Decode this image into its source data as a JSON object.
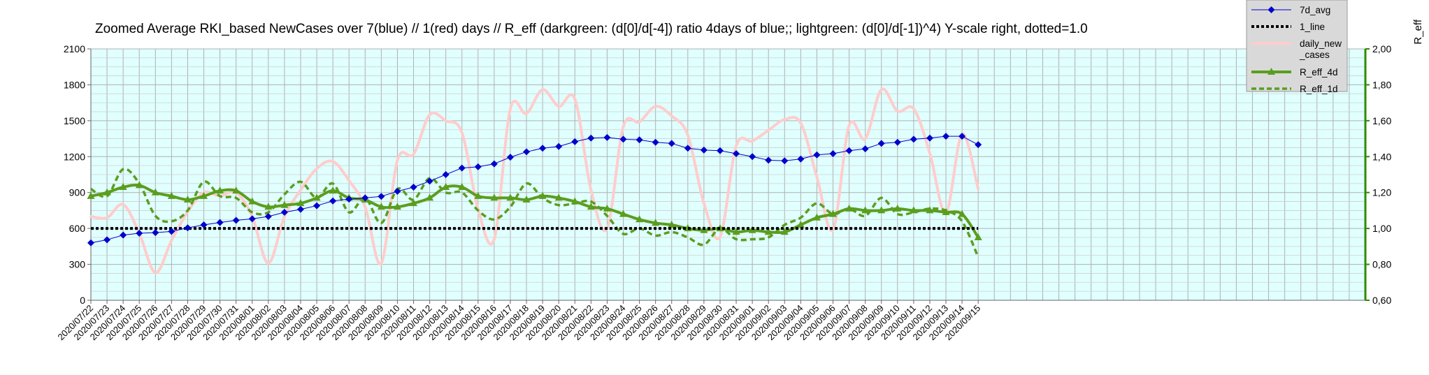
{
  "chart_data": {
    "type": "line",
    "title": "Zoomed Average RKI_based NewCases over 7(blue) // 1(red) days //  R_eff (darkgreen: (d[0]/d[-4]) ratio 4days of blue;; lightgreen: (d[0]/d[-1])^4) Y-scale right, dotted=1.0",
    "y2label": "R_eff",
    "ylim": [
      0,
      2100
    ],
    "y2lim": [
      0.6,
      2.0
    ],
    "yticks": [
      "0",
      "300",
      "600",
      "900",
      "1200",
      "1500",
      "1800",
      "2100"
    ],
    "y2ticks": [
      "0,60",
      "0,80",
      "1,00",
      "1,20",
      "1,40",
      "1,60",
      "1,80",
      "2,00"
    ],
    "categories": [
      "2020/07/22",
      "2020/07/23",
      "2020/07/24",
      "2020/07/25",
      "2020/07/26",
      "2020/07/27",
      "2020/07/28",
      "2020/07/29",
      "2020/07/30",
      "2020/07/31",
      "2020/08/01",
      "2020/08/02",
      "2020/08/03",
      "2020/08/04",
      "2020/08/05",
      "2020/08/06",
      "2020/08/07",
      "2020/08/08",
      "2020/08/09",
      "2020/08/10",
      "2020/08/11",
      "2020/08/12",
      "2020/08/13",
      "2020/08/14",
      "2020/08/15",
      "2020/08/16",
      "2020/08/17",
      "2020/08/18",
      "2020/08/19",
      "2020/08/20",
      "2020/08/21",
      "2020/08/22",
      "2020/08/23",
      "2020/08/24",
      "2020/08/25",
      "2020/08/26",
      "2020/08/27",
      "2020/08/28",
      "2020/08/29",
      "2020/08/30",
      "2020/08/31",
      "2020/09/01",
      "2020/09/02",
      "2020/09/03",
      "2020/09/04",
      "2020/09/05",
      "2020/09/06",
      "2020/09/07",
      "2020/09/08",
      "2020/09/09",
      "2020/09/10",
      "2020/09/11",
      "2020/09/12",
      "2020/09/13",
      "2020/09/14",
      "2020/09/15"
    ],
    "series": [
      {
        "name": "7d_avg",
        "axis": "left",
        "color": "#0000cc",
        "marker": "diamond",
        "values": [
          480,
          505,
          545,
          560,
          565,
          575,
          605,
          630,
          650,
          668,
          680,
          700,
          735,
          760,
          790,
          830,
          845,
          855,
          868,
          910,
          945,
          995,
          1050,
          1105,
          1115,
          1140,
          1195,
          1240,
          1270,
          1285,
          1325,
          1355,
          1360,
          1345,
          1340,
          1320,
          1310,
          1270,
          1255,
          1250,
          1225,
          1200,
          1170,
          1165,
          1180,
          1215,
          1225,
          1250,
          1265,
          1310,
          1320,
          1345,
          1355,
          1370,
          1370,
          1300
        ]
      },
      {
        "name": "1_line",
        "axis": "right",
        "color": "#000000",
        "style": "dotted",
        "values": [
          1.0,
          1.0,
          1.0,
          1.0,
          1.0,
          1.0,
          1.0,
          1.0,
          1.0,
          1.0,
          1.0,
          1.0,
          1.0,
          1.0,
          1.0,
          1.0,
          1.0,
          1.0,
          1.0,
          1.0,
          1.0,
          1.0,
          1.0,
          1.0,
          1.0,
          1.0,
          1.0,
          1.0,
          1.0,
          1.0,
          1.0,
          1.0,
          1.0,
          1.0,
          1.0,
          1.0,
          1.0,
          1.0,
          1.0,
          1.0,
          1.0,
          1.0,
          1.0,
          1.0,
          1.0,
          1.0,
          1.0,
          1.0,
          1.0,
          1.0,
          1.0,
          1.0,
          1.0,
          1.0,
          1.0,
          1.0
        ]
      },
      {
        "name": "daily_new_cases",
        "axis": "left",
        "color": "#ffcccc",
        "values": [
          700,
          690,
          800,
          560,
          230,
          500,
          740,
          900,
          870,
          900,
          700,
          310,
          700,
          920,
          1100,
          1160,
          1000,
          780,
          310,
          1170,
          1220,
          1550,
          1500,
          1400,
          760,
          510,
          1600,
          1560,
          1760,
          1620,
          1680,
          920,
          600,
          1450,
          1490,
          1620,
          1540,
          1380,
          810,
          530,
          1290,
          1330,
          1420,
          1510,
          1480,
          1030,
          590,
          1460,
          1350,
          1760,
          1580,
          1600,
          1230,
          730,
          1390,
          930
        ]
      },
      {
        "name": "R_eff_4d",
        "axis": "right",
        "color": "#5a9e1e",
        "marker": "triangle",
        "values": [
          1.18,
          1.2,
          1.23,
          1.24,
          1.2,
          1.18,
          1.16,
          1.18,
          1.21,
          1.21,
          1.15,
          1.12,
          1.13,
          1.14,
          1.17,
          1.21,
          1.17,
          1.16,
          1.12,
          1.12,
          1.14,
          1.17,
          1.23,
          1.23,
          1.18,
          1.17,
          1.17,
          1.16,
          1.18,
          1.17,
          1.15,
          1.12,
          1.11,
          1.08,
          1.05,
          1.03,
          1.02,
          1.0,
          0.99,
          1.0,
          0.98,
          0.99,
          0.98,
          0.98,
          1.02,
          1.06,
          1.08,
          1.11,
          1.1,
          1.1,
          1.11,
          1.1,
          1.1,
          1.09,
          1.08,
          0.95
        ]
      },
      {
        "name": "R_eff_1d",
        "axis": "right",
        "color": "#5a9e1e",
        "style": "dashed",
        "values": [
          1.22,
          1.18,
          1.33,
          1.25,
          1.07,
          1.04,
          1.1,
          1.26,
          1.18,
          1.17,
          1.09,
          1.09,
          1.19,
          1.26,
          1.17,
          1.25,
          1.09,
          1.17,
          1.03,
          1.22,
          1.16,
          1.28,
          1.2,
          1.2,
          1.1,
          1.05,
          1.12,
          1.25,
          1.17,
          1.13,
          1.14,
          1.15,
          1.07,
          0.97,
          1.0,
          0.96,
          0.98,
          0.95,
          0.91,
          1.0,
          0.94,
          0.94,
          0.95,
          1.02,
          1.06,
          1.14,
          1.08,
          1.11,
          1.07,
          1.17,
          1.08,
          1.09,
          1.11,
          1.1,
          1.04,
          0.84
        ]
      }
    ],
    "legend": {
      "placement": "top-right",
      "entries": [
        {
          "label": "7d_avg",
          "series": 0
        },
        {
          "label": "1_line",
          "series": 1
        },
        {
          "label": "daily_new_cases",
          "lines": [
            "daily_new",
            "_cases"
          ],
          "series": 2
        },
        {
          "label": "R_eff_4d",
          "series": 3
        },
        {
          "label": "R_eff_1d",
          "series": 4
        }
      ]
    },
    "plot_background": "#e0ffff",
    "grid": true,
    "grid_color": "#b0b0b0",
    "right_axis_color": "#2e8b00",
    "extra_empty_slots": 23
  }
}
